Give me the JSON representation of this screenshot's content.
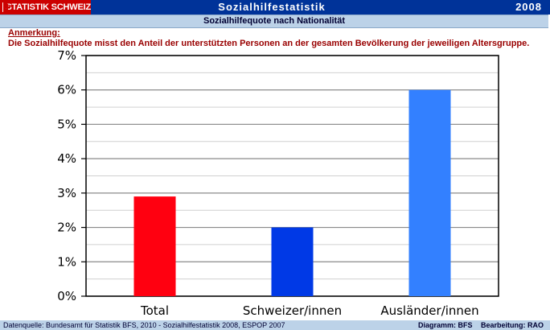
{
  "header": {
    "brand": "STATISTIK SCHWEIZ",
    "title": "Sozialhilfestatistik",
    "year": "2008"
  },
  "subtitle": "Sozialhilfequote nach Nationalität",
  "note": {
    "label": "Anmerkung:",
    "text": "Die Sozialhilfequote misst den Anteil der unterstützten Personen an der gesamten Bevölkerung der jeweiligen Altersgruppe."
  },
  "chart_data": {
    "type": "bar",
    "categories": [
      "Total",
      "Schweizer/innen",
      "Ausländer/innen"
    ],
    "values": [
      2.9,
      2.0,
      6.0
    ],
    "colors": [
      "#ff0010",
      "#0039e6",
      "#3380ff"
    ],
    "ylim": [
      0,
      7
    ],
    "yticks": [
      0,
      1,
      2,
      3,
      4,
      5,
      6,
      7
    ],
    "ytick_labels": [
      "0%",
      "1%",
      "2%",
      "3%",
      "4%",
      "5%",
      "6%",
      "7%"
    ],
    "grid": true
  },
  "footer": {
    "source": "Datenquelle: Bundesamt für Statistik BFS, 2010 - Sozialhilfestatistik 2008, ESPOP 2007",
    "diagram": "Diagramm: BFS",
    "editing": "Bearbeitung: RAO"
  }
}
